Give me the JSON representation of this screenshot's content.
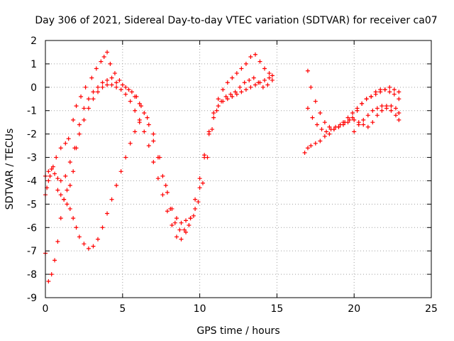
{
  "chart_data": {
    "type": "scatter",
    "title": "Day 306 of 2021, Sidereal Day-to-day VTEC variation (SDTVAR) for receiver ca07",
    "xlabel": "GPS time / hours",
    "ylabel": "SDTVAR / TECUs",
    "xlim": [
      0,
      25
    ],
    "ylim": [
      -9,
      2
    ],
    "xticks": [
      "0",
      "5",
      "10",
      "15",
      "20",
      "25"
    ],
    "yticks": [
      "-9",
      "-8",
      "-7",
      "-6",
      "-5",
      "-4",
      "-3",
      "-2",
      "-1",
      "0",
      "1",
      "2"
    ],
    "grid": true,
    "marker": "+",
    "color": "#ff0000",
    "series": [
      {
        "x": [
          0.0,
          0.1,
          0.2,
          0.3,
          0.5,
          0.7,
          1.0,
          1.3,
          1.5,
          1.8,
          2.0,
          2.3,
          2.6,
          3.0,
          3.3,
          3.6,
          3.8,
          4.0,
          4.2,
          4.5,
          4.8,
          5.2,
          5.6,
          5.9,
          6.1,
          6.4,
          6.7,
          7.0,
          7.3,
          7.6,
          7.9,
          8.2,
          8.5,
          8.8,
          9.1,
          9.4,
          9.7,
          10.0,
          10.3,
          10.6,
          10.9,
          11.2,
          11.5,
          11.8,
          12.1,
          12.4,
          12.7,
          13.0,
          13.3,
          13.6,
          13.9,
          14.2,
          14.5,
          14.7
        ],
        "values": [
          -4.6,
          -4.3,
          -4.0,
          -3.8,
          -3.4,
          -3.0,
          -2.6,
          -2.4,
          -2.2,
          -1.4,
          -0.8,
          -0.4,
          0.0,
          0.4,
          0.8,
          1.1,
          1.3,
          1.5,
          1.0,
          0.6,
          0.3,
          0.0,
          -0.2,
          -0.4,
          -0.7,
          -1.1,
          -1.6,
          -2.3,
          -3.0,
          -3.8,
          -4.5,
          -5.2,
          -5.6,
          -5.8,
          -5.7,
          -5.6,
          -5.2,
          -4.3,
          -3.0,
          -1.9,
          -1.1,
          -0.5,
          -0.1,
          0.2,
          0.4,
          0.6,
          0.8,
          1.0,
          1.3,
          1.4,
          1.1,
          0.8,
          0.6,
          0.5
        ]
      },
      {
        "x": [
          0.0,
          0.2,
          0.4,
          0.6,
          0.8,
          1.0,
          1.2,
          1.4,
          1.6,
          1.8,
          2.0,
          2.2,
          2.5,
          2.8,
          3.1,
          3.4,
          3.7,
          4.0,
          4.3,
          4.6,
          5.0,
          5.4,
          5.8,
          6.2,
          6.6,
          7.0,
          7.4,
          7.8,
          8.1,
          8.4,
          8.7,
          9.0,
          9.3,
          9.6,
          9.9,
          10.2,
          10.5,
          10.8,
          11.1,
          11.4,
          11.7,
          12.0,
          12.3,
          12.6,
          12.9,
          13.2,
          13.5,
          13.8,
          14.1,
          14.4,
          14.7
        ],
        "values": [
          -7.1,
          -8.3,
          -8.0,
          -7.4,
          -6.6,
          -5.6,
          -4.8,
          -4.4,
          -4.2,
          -3.6,
          -2.6,
          -1.6,
          -0.9,
          -0.5,
          -0.2,
          0.0,
          0.2,
          0.3,
          0.4,
          0.2,
          0.1,
          -0.1,
          -0.4,
          -0.8,
          -1.3,
          -2.0,
          -3.0,
          -4.2,
          -5.2,
          -5.8,
          -6.1,
          -6.1,
          -5.9,
          -5.5,
          -4.9,
          -4.1,
          -3.0,
          -1.8,
          -1.0,
          -0.6,
          -0.4,
          -0.3,
          -0.2,
          0.0,
          0.2,
          0.3,
          0.4,
          0.2,
          0.0,
          0.1,
          0.3
        ]
      },
      {
        "x": [
          0.0,
          0.2,
          0.4,
          0.6,
          0.8,
          1.0,
          1.3,
          1.6,
          1.9,
          2.2,
          2.5,
          2.8,
          3.1,
          3.4,
          3.7,
          4.0,
          4.3,
          4.6,
          4.9,
          5.2,
          5.5,
          5.8,
          6.1,
          6.4,
          6.7,
          7.0,
          7.3,
          7.6,
          7.9,
          8.2,
          8.5,
          8.8,
          9.1,
          9.4,
          9.7,
          10.0,
          10.3,
          10.6,
          10.9,
          11.2,
          11.5,
          11.8,
          12.1,
          12.4,
          12.7,
          13.0,
          13.3,
          13.6,
          13.9,
          14.2,
          14.5
        ],
        "values": [
          -3.8,
          -3.6,
          -3.5,
          -3.7,
          -3.9,
          -4.0,
          -3.8,
          -3.2,
          -2.6,
          -2.0,
          -1.4,
          -0.9,
          -0.5,
          -0.2,
          0.0,
          0.1,
          0.1,
          0.0,
          -0.1,
          -0.3,
          -0.6,
          -1.0,
          -1.4,
          -1.9,
          -2.5,
          -3.2,
          -3.9,
          -4.6,
          -5.3,
          -5.9,
          -6.4,
          -6.5,
          -6.2,
          -5.6,
          -4.8,
          -3.9,
          -2.9,
          -2.0,
          -1.3,
          -0.8,
          -0.6,
          -0.5,
          -0.4,
          -0.3,
          -0.2,
          -0.1,
          0.0,
          0.1,
          0.2,
          0.3,
          0.4
        ]
      },
      {
        "x": [
          0.8,
          1.0,
          1.2,
          1.4,
          1.6,
          1.8,
          2.0,
          2.2,
          2.5,
          2.8,
          3.1,
          3.4,
          3.7,
          4.0,
          4.3,
          4.6,
          4.9,
          5.2,
          5.5,
          5.8,
          6.1
        ],
        "values": [
          -4.4,
          -4.6,
          -4.8,
          -5.0,
          -5.2,
          -5.6,
          -6.0,
          -6.4,
          -6.7,
          -6.9,
          -6.8,
          -6.5,
          -6.0,
          -5.4,
          -4.8,
          -4.2,
          -3.6,
          -3.0,
          -2.4,
          -1.9,
          -1.5
        ]
      },
      {
        "x": [
          16.8,
          17.0,
          17.2,
          17.5,
          17.8,
          18.1,
          18.4,
          18.7,
          19.0,
          19.3,
          19.6,
          19.9,
          20.2,
          20.5,
          20.8,
          21.1,
          21.4,
          21.7,
          22.0,
          22.3,
          22.6,
          22.9
        ],
        "values": [
          -2.8,
          -2.6,
          -2.5,
          -2.4,
          -2.3,
          -2.1,
          -2.0,
          -1.8,
          -1.7,
          -1.5,
          -1.3,
          -1.1,
          -0.9,
          -0.7,
          -0.5,
          -0.4,
          -0.2,
          -0.1,
          -0.1,
          -0.2,
          -0.3,
          -0.5
        ]
      },
      {
        "x": [
          17.0,
          17.2,
          17.5,
          17.8,
          18.1,
          18.4,
          18.7,
          19.0,
          19.3,
          19.6,
          19.9,
          20.2,
          20.5,
          20.8,
          21.1,
          21.4,
          21.7,
          22.0,
          22.3,
          22.6,
          22.9
        ],
        "values": [
          0.7,
          0.0,
          -0.6,
          -1.1,
          -1.5,
          -1.7,
          -1.8,
          -1.7,
          -1.6,
          -1.5,
          -1.3,
          -1.0,
          -0.7,
          -0.5,
          -0.4,
          -0.3,
          -0.2,
          -0.1,
          0.0,
          -0.1,
          -0.2
        ]
      },
      {
        "x": [
          17.0,
          17.3,
          17.6,
          17.9,
          18.2,
          18.5,
          18.8,
          19.1,
          19.4,
          19.7,
          20.0,
          20.3,
          20.6,
          20.9,
          21.2,
          21.5,
          21.8,
          22.1,
          22.4,
          22.7,
          22.9
        ],
        "values": [
          -0.9,
          -1.3,
          -1.6,
          -1.8,
          -1.9,
          -1.8,
          -1.7,
          -1.6,
          -1.5,
          -1.4,
          -1.4,
          -1.5,
          -1.6,
          -1.7,
          -1.5,
          -1.2,
          -1.0,
          -0.9,
          -0.8,
          -0.9,
          -1.1
        ]
      },
      {
        "x": [
          20.0,
          20.3,
          20.6,
          20.9,
          21.2,
          21.5,
          21.8,
          22.1,
          22.4,
          22.7,
          22.9
        ],
        "values": [
          -1.9,
          -1.6,
          -1.4,
          -1.2,
          -1.0,
          -0.9,
          -0.8,
          -0.8,
          -1.0,
          -1.2,
          -1.4
        ]
      }
    ]
  }
}
